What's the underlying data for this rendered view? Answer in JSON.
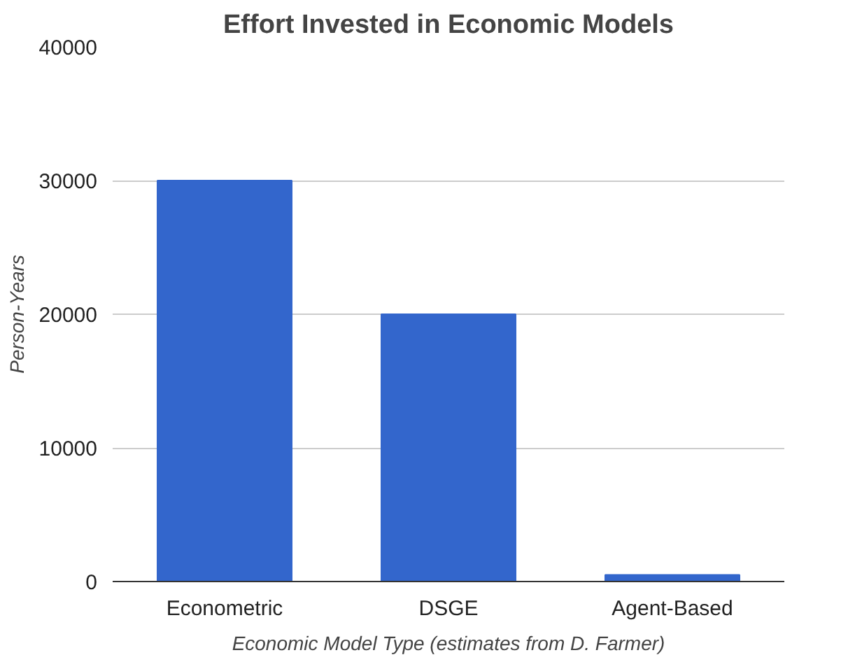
{
  "chart_data": {
    "type": "bar",
    "title": "Effort Invested in Economic Models",
    "categories": [
      "Econometric",
      "DSGE",
      "Agent-Based"
    ],
    "values": [
      30000,
      20000,
      500
    ],
    "color": "#3366cc",
    "ylim": [
      0,
      40000
    ],
    "yticks": [
      0,
      10000,
      20000,
      30000,
      40000
    ],
    "grid": "y",
    "xlabel": "Economic Model Type (estimates from D. Farmer)",
    "ylabel": "Person-Years"
  }
}
